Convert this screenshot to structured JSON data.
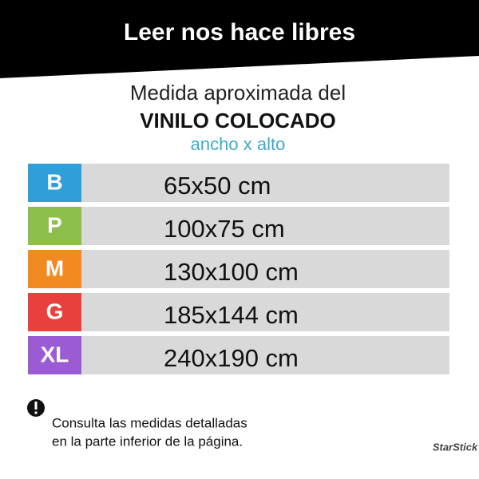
{
  "header": {
    "title": "Leer nos hace libres"
  },
  "heading": {
    "line1": "Medida aproximada del",
    "line2": "VINILO COLOCADO",
    "line3": "ancho x alto"
  },
  "sizes": [
    {
      "code": "B",
      "measure": "65x50 cm",
      "color": "#2e9fd8"
    },
    {
      "code": "P",
      "measure": "100x75 cm",
      "color": "#8cbf4b"
    },
    {
      "code": "M",
      "measure": "130x100 cm",
      "color": "#f28a22"
    },
    {
      "code": "G",
      "measure": "185x144 cm",
      "color": "#e8403d"
    },
    {
      "code": "XL",
      "measure": "240x190 cm",
      "color": "#9b5bd3"
    }
  ],
  "note": {
    "line1": "Consulta las medidas detalladas",
    "line2": "en la parte inferior de la página."
  },
  "logo": "StarStick"
}
